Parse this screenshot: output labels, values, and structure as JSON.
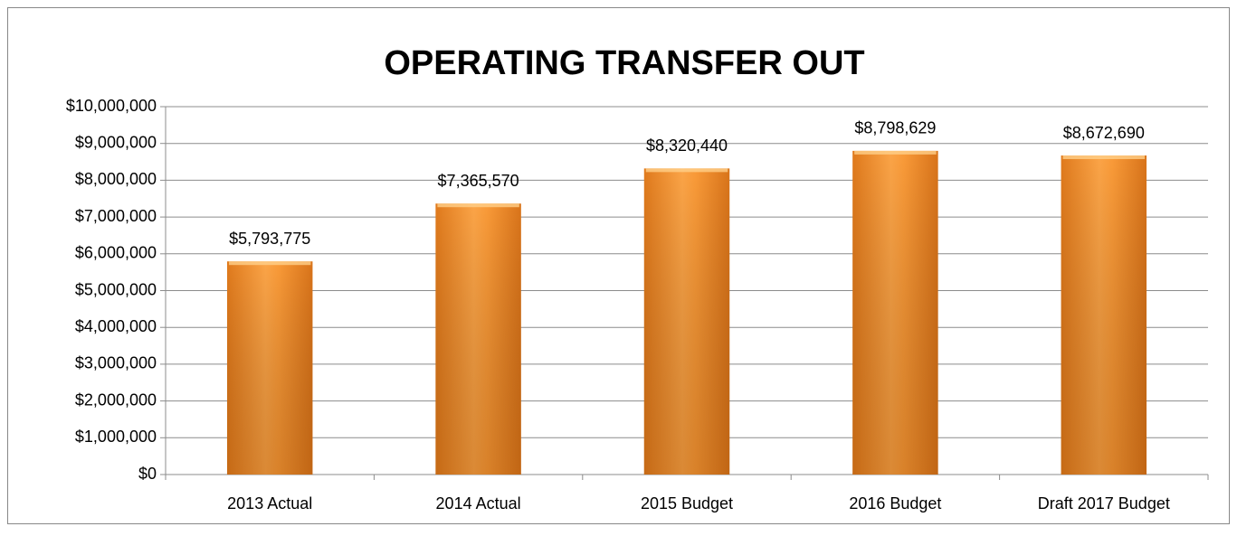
{
  "chart_data": {
    "type": "bar",
    "title": "OPERATING TRANSFER OUT",
    "categories": [
      "2013 Actual",
      "2014 Actual",
      "2015 Budget",
      "2016 Budget",
      "Draft 2017 Budget"
    ],
    "values": [
      5793775,
      7365570,
      8320440,
      8798629,
      8672690
    ],
    "value_labels": [
      "$5,793,775",
      "$7,365,570",
      "$8,320,440",
      "$8,798,629",
      "$8,672,690"
    ],
    "color": "#f7962e",
    "ylim": [
      0,
      10000000
    ],
    "yticks": [
      {
        "value": 0,
        "label": "$0"
      },
      {
        "value": 1000000,
        "label": "$1,000,000"
      },
      {
        "value": 2000000,
        "label": "$2,000,000"
      },
      {
        "value": 3000000,
        "label": "$3,000,000"
      },
      {
        "value": 4000000,
        "label": "$4,000,000"
      },
      {
        "value": 5000000,
        "label": "$5,000,000"
      },
      {
        "value": 6000000,
        "label": "$6,000,000"
      },
      {
        "value": 7000000,
        "label": "$7,000,000"
      },
      {
        "value": 8000000,
        "label": "$8,000,000"
      },
      {
        "value": 9000000,
        "label": "$9,000,000"
      },
      {
        "value": 10000000,
        "label": "$10,000,000"
      }
    ],
    "grid": true
  }
}
